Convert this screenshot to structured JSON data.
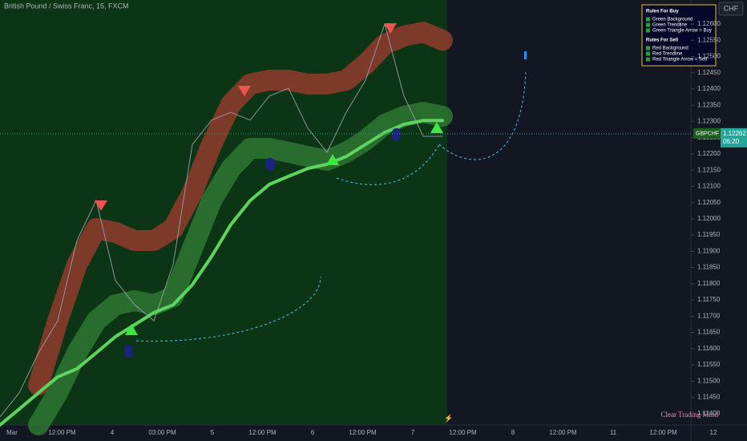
{
  "chart_data": {
    "type": "line",
    "title": "British Pound / Swiss Franc, 15, FXCM",
    "currency_button": "CHF",
    "symbol": "GBPCHF",
    "last_price": 1.12262,
    "countdown": "06:20",
    "watermark": "Clear Trading Mind",
    "legend": {
      "buy_title": "Rules For Buy",
      "buy_items": [
        "Green Background",
        "Green Trendline",
        "Green Triangle Arrow = Buy"
      ],
      "sell_title": "Rules For Sell",
      "sell_items": [
        "Red Background",
        "Red Trendline",
        "Red Triangle Arrow = Sell"
      ]
    },
    "xtick_labels": [
      "Mar",
      "12:00 PM",
      "4",
      "03:00 PM",
      "5",
      "12:00 PM",
      "6",
      "12:00 PM",
      "7",
      "12:00 PM",
      "8",
      "12:00 PM",
      "11",
      "12:00 PM",
      "12"
    ],
    "ylim": [
      1.11365,
      1.12674
    ],
    "yticks": [
      {
        "value": 1.114,
        "label": "1.11400"
      },
      {
        "value": 1.1145,
        "label": "1.11450"
      },
      {
        "value": 1.115,
        "label": "1.11500"
      },
      {
        "value": 1.1155,
        "label": "1.11550"
      },
      {
        "value": 1.116,
        "label": "1.11600"
      },
      {
        "value": 1.1165,
        "label": "1.11650"
      },
      {
        "value": 1.117,
        "label": "1.11700"
      },
      {
        "value": 1.1175,
        "label": "1.11750"
      },
      {
        "value": 1.118,
        "label": "1.11800"
      },
      {
        "value": 1.1185,
        "label": "1.11850"
      },
      {
        "value": 1.119,
        "label": "1.11900"
      },
      {
        "value": 1.1195,
        "label": "1.11950"
      },
      {
        "value": 1.12,
        "label": "1.12000"
      },
      {
        "value": 1.1205,
        "label": "1.12050"
      },
      {
        "value": 1.121,
        "label": "1.12100"
      },
      {
        "value": 1.1215,
        "label": "1.12150"
      },
      {
        "value": 1.122,
        "label": "1.12200"
      },
      {
        "value": 1.1225,
        "label": "1.12250"
      },
      {
        "value": 1.123,
        "label": "1.12300"
      },
      {
        "value": 1.1235,
        "label": "1.12350"
      },
      {
        "value": 1.124,
        "label": "1.12400"
      },
      {
        "value": 1.1245,
        "label": "1.12450"
      },
      {
        "value": 1.125,
        "label": "1.12500"
      },
      {
        "value": 1.1255,
        "label": "1.12550"
      },
      {
        "value": 1.126,
        "label": "1.12600"
      }
    ],
    "series": [
      {
        "color": "#8a3b2b",
        "values": [
          null,
          null,
          1.11488,
          1.11686,
          1.11859,
          1.1197,
          1.11958,
          1.11933,
          1.11933,
          1.1197,
          1.12081,
          1.12229,
          1.12353,
          1.12415,
          1.12427,
          1.12427,
          1.12415,
          1.12415,
          1.12427,
          1.12476,
          1.12538,
          1.12563,
          1.12575,
          1.1255
        ]
      },
      {
        "color": "#2f7a34",
        "values": [
          null,
          null,
          1.11365,
          1.11464,
          1.11587,
          1.11686,
          1.11735,
          1.11748,
          1.11735,
          1.1176,
          1.11908,
          1.12056,
          1.12155,
          1.12217,
          1.12217,
          1.12205,
          1.12192,
          1.1218,
          1.12205,
          1.12242,
          1.12291,
          1.12316,
          1.12328,
          1.12316
        ]
      },
      {
        "color": "#9aa0a6",
        "values": [
          1.1139,
          1.11464,
          1.11587,
          1.11686,
          1.11933,
          1.12057,
          1.1181,
          1.11735,
          1.11686,
          1.11859,
          1.12229,
          1.12304,
          1.12328,
          1.12304,
          1.12378,
          1.12402,
          1.12279,
          1.12205,
          1.12328,
          1.12427,
          1.126,
          1.12378,
          1.12254,
          1.12254
        ]
      },
      {
        "color": "#5fd35f",
        "values": [
          1.11365,
          1.11414,
          1.11464,
          1.11513,
          1.11538,
          1.11587,
          1.11637,
          1.11674,
          1.11711,
          1.11735,
          1.11797,
          1.11884,
          1.11982,
          1.12056,
          1.12106,
          1.12131,
          1.12155,
          1.12168,
          1.12192,
          1.12229,
          1.12266,
          1.12291,
          1.12303,
          1.12303
        ]
      }
    ]
  }
}
